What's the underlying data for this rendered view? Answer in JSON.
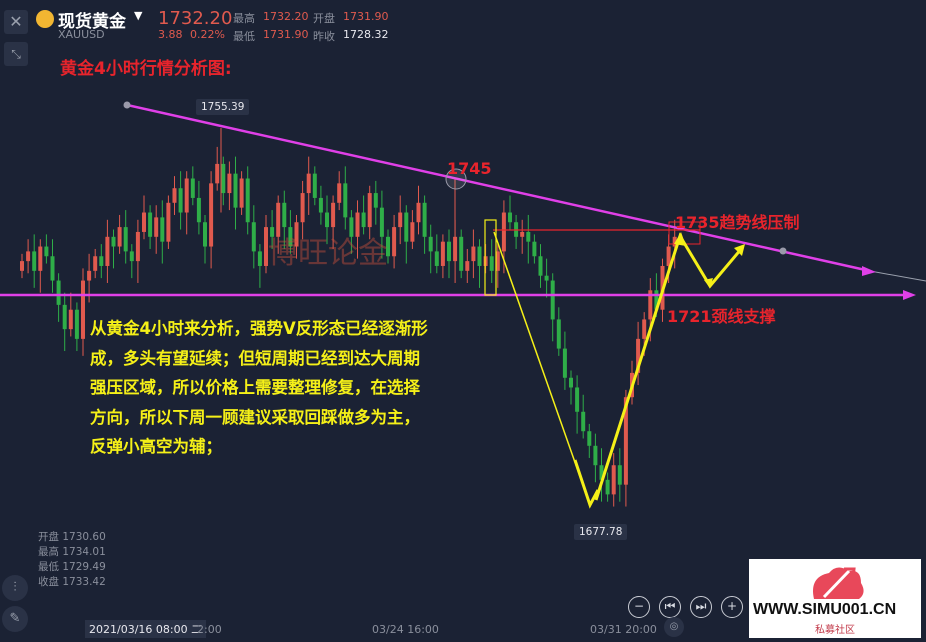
{
  "header": {
    "instrument": "现货黄金",
    "symbol": "XAUUSD",
    "price": "1732.20",
    "change": "3.88",
    "change_pct": "0.22%",
    "high_label": "最高",
    "high": "1732.20",
    "open_label": "开盘",
    "open": "1731.90",
    "low_label": "最低",
    "low": "1731.90",
    "prev_close_label": "昨收",
    "prev_close": "1728.32"
  },
  "chart_title": "黄金4小时行情分析图:",
  "watermark": "博旺论金",
  "annotations": {
    "a1745": "1745",
    "a1735": "1735趋势线压制",
    "a1721": "1721颈线支撑"
  },
  "analysis": [
    "从黄金4小时来分析，强势V反形态已经逐渐形",
    "成，多头有望延续；但短周期已经到达大周期",
    "强压区域，所以价格上需要整理修复，在选择",
    "方向，所以下周一顾建议采取回踩做多为主，",
    "反弹小高空为辅；"
  ],
  "price_labels": {
    "high": "1755.39",
    "low": "1677.78"
  },
  "ohlc": [
    {
      "label": "开盘",
      "value": "1730.60"
    },
    {
      "label": "最高",
      "value": "1734.01"
    },
    {
      "label": "最低",
      "value": "1729.49"
    },
    {
      "label": "收盘",
      "value": "1733.42"
    }
  ],
  "time_axis": {
    "cursor": "2021/03/16 08:00 二",
    "t1": "2:00",
    "t2": "03/24 16:00",
    "t3": "03/31 20:00"
  },
  "logo": {
    "url_text": "WWW.SIMU001.CN",
    "sub": "私募社区"
  },
  "colors": {
    "up": "#e05a4e",
    "down": "#2fae48",
    "trendline": "#e040e8",
    "v_path": "#f5f018",
    "annotation": "#e8242c"
  },
  "candles_close": [
    1728,
    1730,
    1726,
    1731,
    1729,
    1724,
    1719,
    1714,
    1718,
    1712,
    1724,
    1726,
    1729,
    1727,
    1733,
    1731,
    1735,
    1730,
    1728,
    1734,
    1738,
    1733,
    1737,
    1732,
    1740,
    1743,
    1738,
    1745,
    1741,
    1736,
    1731,
    1744,
    1748,
    1742,
    1746,
    1739,
    1745,
    1736,
    1730,
    1727,
    1735,
    1733,
    1740,
    1735,
    1731,
    1736,
    1742,
    1746,
    1741,
    1738,
    1735,
    1740,
    1744,
    1737,
    1733,
    1738,
    1735,
    1742,
    1739,
    1733,
    1729,
    1735,
    1738,
    1732,
    1736,
    1740,
    1733,
    1730,
    1727,
    1732,
    1728,
    1733,
    1726,
    1728,
    1731,
    1727,
    1729,
    1726,
    1730,
    1738,
    1736,
    1733,
    1734,
    1732,
    1729,
    1725,
    1724,
    1716,
    1710,
    1704,
    1702,
    1697,
    1693,
    1690,
    1686,
    1683,
    1680,
    1686,
    1682,
    1700,
    1705,
    1712,
    1716,
    1722,
    1718,
    1727,
    1731,
    1733
  ]
}
